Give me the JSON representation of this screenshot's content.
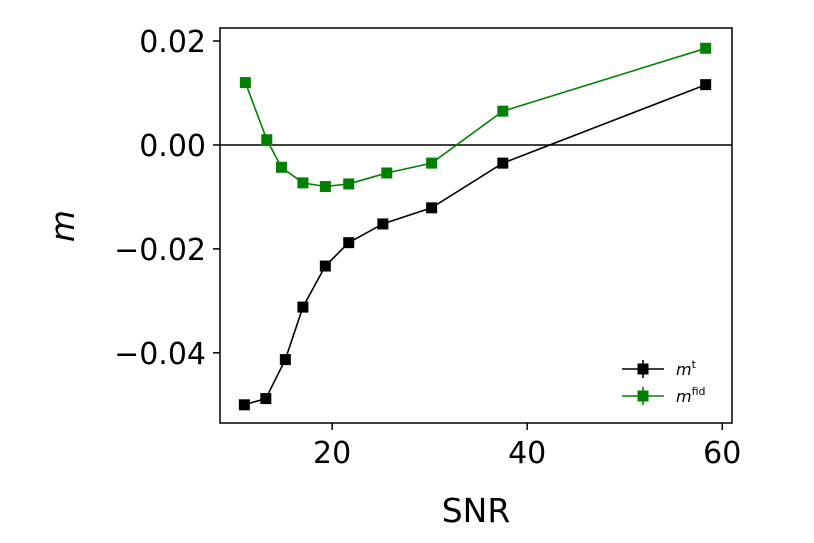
{
  "chart_data": {
    "type": "line",
    "xlabel": "SNR",
    "ylabel": "m",
    "xlim": [
      8.5,
      61
    ],
    "ylim": [
      -0.0535,
      0.0225
    ],
    "xticks": [
      20,
      40,
      60
    ],
    "xtick_labels": [
      "20",
      "40",
      "60"
    ],
    "yticks": [
      0.02,
      0.0,
      -0.02,
      -0.04
    ],
    "ytick_labels": [
      "0.02",
      "0.00",
      "−0.02",
      "−0.04"
    ],
    "reference_line_y": 0.0,
    "grid": false,
    "legend_position": "lower-right",
    "series": [
      {
        "key": "mt",
        "legend_base": "m",
        "legend_sup": "t",
        "color": "#000000",
        "marker": "square",
        "x": [
          11.0,
          13.2,
          15.2,
          17.0,
          19.3,
          21.7,
          25.2,
          30.2,
          37.5,
          58.3
        ],
        "y": [
          -0.05,
          -0.0488,
          -0.0413,
          -0.0312,
          -0.0233,
          -0.0188,
          -0.0152,
          -0.0121,
          -0.0035,
          0.0116
        ]
      },
      {
        "key": "mfid",
        "legend_base": "m",
        "legend_sup": "fid",
        "color": "#008000",
        "marker": "square",
        "x": [
          11.1,
          13.3,
          14.8,
          17.0,
          19.3,
          21.7,
          25.6,
          30.2,
          37.5,
          58.3
        ],
        "y": [
          0.012,
          0.001,
          -0.0043,
          -0.0073,
          -0.008,
          -0.0075,
          -0.0054,
          -0.0035,
          0.0065,
          0.0186
        ]
      }
    ]
  }
}
